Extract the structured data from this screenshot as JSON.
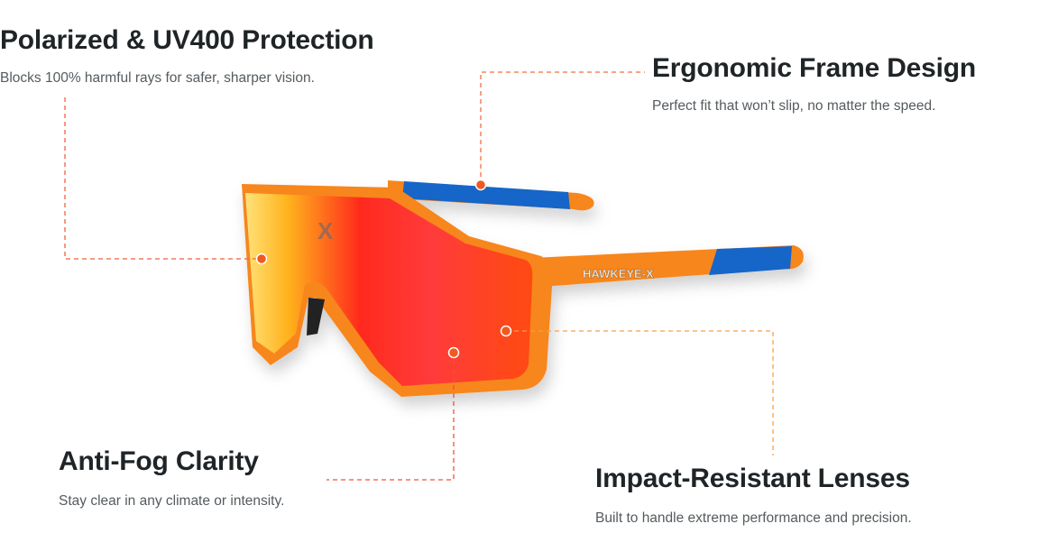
{
  "features": [
    {
      "title": "Polarized & UV400 Protection",
      "desc": "Blocks 100% harmful rays for safer, sharper vision."
    },
    {
      "title": "Ergonomic Frame Design",
      "desc": "Perfect fit that won’t slip, no matter the speed."
    },
    {
      "title": "Anti-Fog Clarity",
      "desc": "Stay clear in any climate or intensity."
    },
    {
      "title": "Impact-Resistant Lenses",
      "desc": "Built to handle extreme performance and precision."
    }
  ],
  "product": {
    "brand_text": "HAWKEYE-X"
  },
  "colors": {
    "frame": "#f7861e",
    "accent_blue": "#1565c8",
    "callout_red": "#f0503c",
    "callout_orange": "#f7a04a",
    "heading": "#1f2427"
  }
}
